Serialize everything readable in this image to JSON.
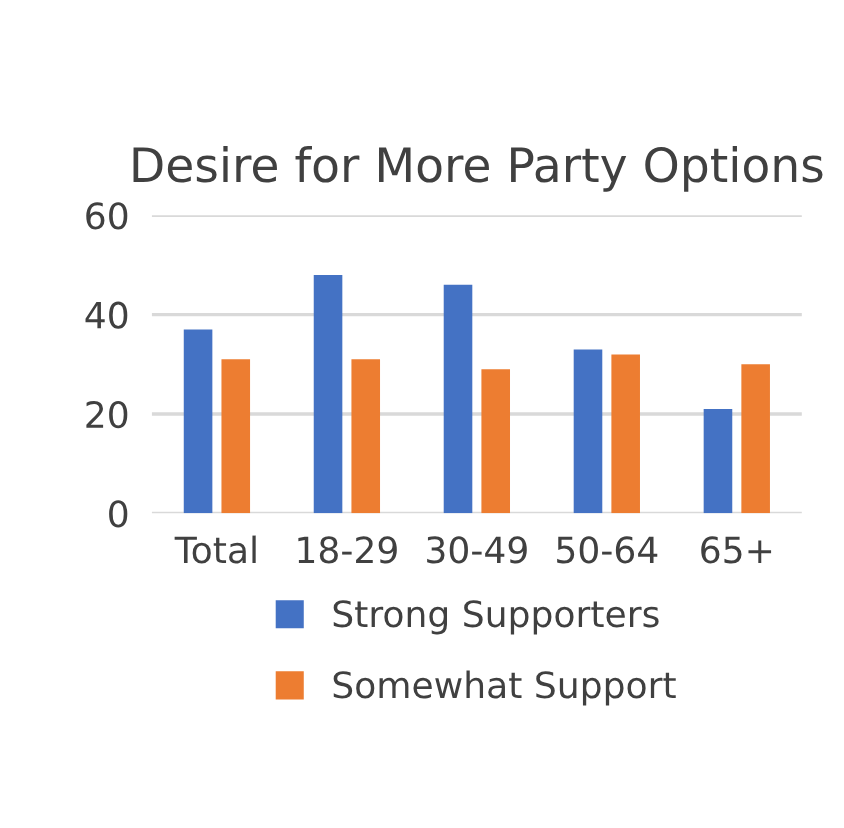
{
  "chart_data": {
    "type": "bar",
    "title": "Desire for More Party Options",
    "categories": [
      "Total",
      "18-29",
      "30-49",
      "50-64",
      "65+"
    ],
    "series": [
      {
        "name": "Strong Supporters",
        "color": "#4472c4",
        "values": [
          37,
          48,
          46,
          33,
          21
        ]
      },
      {
        "name": "Somewhat Support",
        "color": "#ed7d31",
        "values": [
          31,
          31,
          29,
          32,
          30
        ]
      }
    ],
    "ylim": [
      0,
      60
    ],
    "yticks": [
      0,
      20,
      40,
      60
    ],
    "grid": "y",
    "legend": "bottom"
  }
}
